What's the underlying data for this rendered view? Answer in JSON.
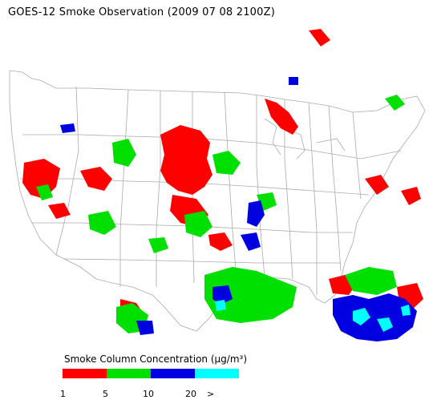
{
  "title": "GOES-12 Smoke Observation (2009 07 08  2100Z)",
  "legend": {
    "title": "Smoke Column Concentration (µg/m³)",
    "colors": [
      "#ff0000",
      "#00e000",
      "#0000e0",
      "#00ffff"
    ],
    "ticks": [
      "1",
      "5",
      "10",
      "20",
      ">"
    ]
  },
  "map": {
    "region": "Continental United States",
    "boundary_color": "#aaaaaa"
  }
}
